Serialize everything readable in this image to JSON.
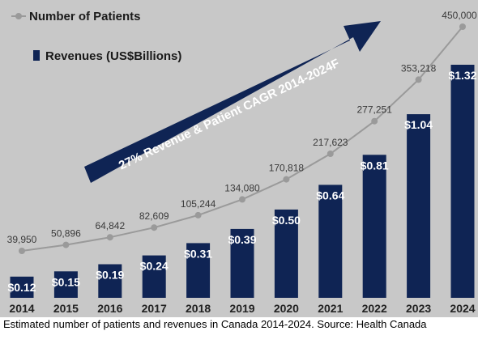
{
  "caption": "Estimated number of patients and revenues in Canada 2014-2024. Source: Health Canada",
  "colors": {
    "bar": "#0f2454",
    "line": "#9a9a9a",
    "background": "#c8c8c8",
    "arrow": "#0f2454"
  },
  "chart_data": {
    "type": "bar",
    "categories": [
      "2014",
      "2015",
      "2016",
      "2017",
      "2018",
      "2019",
      "2020",
      "2021",
      "2022",
      "2023",
      "2024"
    ],
    "series": [
      {
        "name": "Revenues (US$Billions)",
        "type": "bar",
        "values": [
          0.12,
          0.15,
          0.19,
          0.24,
          0.31,
          0.39,
          0.5,
          0.64,
          0.81,
          1.04,
          1.32
        ],
        "labels": [
          "$0.12",
          "$0.15",
          "$0.19",
          "$0.24",
          "$0.31",
          "$0.39",
          "$0.50",
          "$0.64",
          "$0.81",
          "$1.04",
          "$1.32"
        ]
      },
      {
        "name": "Number of Patients",
        "type": "line",
        "values": [
          39950,
          50896,
          64842,
          82609,
          105244,
          134080,
          170818,
          217623,
          277251,
          353218,
          450000
        ],
        "labels": [
          "39,950",
          "50,896",
          "64,842",
          "82,609",
          "105,244",
          "134,080",
          "170,818",
          "217,623",
          "277,251",
          "353,218",
          "450,000"
        ]
      }
    ],
    "annotation": "27% Revenue & Patient CAGR 2014-2024F",
    "legend_position": "top-left",
    "grid": false
  }
}
